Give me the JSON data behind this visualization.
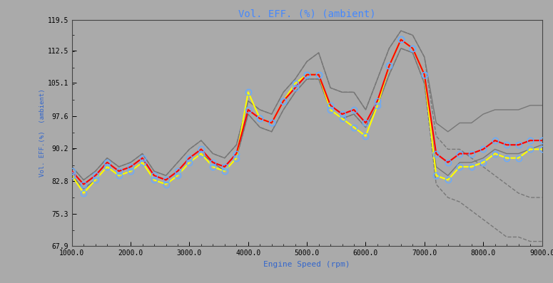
{
  "title": "Vol. EFF. (%) (ambient)",
  "xlabel": "Engine Speed (rpm)",
  "ylabel": "Vol. EFF.(%)  (ambient)",
  "bg_color": "#aaaaaa",
  "plot_bg_color": "#aaaaaa",
  "title_color": "#4488ff",
  "label_color": "#3366cc",
  "xlim": [
    1000,
    9000
  ],
  "ylim": [
    67.9,
    119.5
  ],
  "yticks": [
    67.9,
    75.3,
    82.8,
    90.2,
    97.6,
    105.1,
    112.5,
    119.5
  ],
  "xticks": [
    1000,
    2000,
    3000,
    4000,
    5000,
    6000,
    7000,
    8000,
    9000
  ],
  "rpm": [
    1000,
    1200,
    1400,
    1600,
    1800,
    2000,
    2200,
    2400,
    2600,
    2800,
    3000,
    3200,
    3400,
    3600,
    3800,
    4000,
    4200,
    4400,
    4600,
    4800,
    5000,
    5200,
    5400,
    5600,
    5800,
    6000,
    6200,
    6400,
    6600,
    6800,
    7000,
    7200,
    7400,
    7600,
    7800,
    8000,
    8200,
    8400,
    8600,
    8800,
    9000
  ],
  "red_solid": [
    85,
    82,
    84,
    87,
    85,
    86,
    88,
    84,
    83,
    85,
    88,
    90,
    87,
    86,
    89,
    99,
    97,
    96,
    101,
    104,
    107,
    107,
    100,
    98,
    99,
    96,
    101,
    109,
    115,
    113,
    107,
    89,
    87,
    89,
    89,
    90,
    92,
    91,
    91,
    92,
    92
  ],
  "yellow_solid": [
    84,
    80,
    83,
    86,
    84,
    85,
    87,
    83,
    82,
    84,
    87,
    89,
    86,
    85,
    88,
    103,
    97,
    96,
    101,
    105,
    107,
    107,
    99,
    97,
    95,
    93,
    100,
    109,
    115,
    113,
    107,
    84,
    83,
    86,
    86,
    87,
    89,
    88,
    88,
    90,
    90
  ],
  "gray_s_upper": [
    86,
    83,
    85,
    88,
    86,
    87,
    89,
    85,
    84,
    87,
    90,
    92,
    89,
    88,
    91,
    101,
    99,
    98,
    103,
    106,
    110,
    112,
    104,
    103,
    103,
    99,
    106,
    113,
    117,
    116,
    111,
    96,
    94,
    96,
    96,
    98,
    99,
    99,
    99,
    100,
    100
  ],
  "gray_s_lower": [
    84,
    81,
    83,
    86,
    84,
    85,
    87,
    83,
    82,
    84,
    87,
    89,
    87,
    85,
    88,
    98,
    95,
    94,
    99,
    103,
    106,
    106,
    99,
    97,
    98,
    95,
    100,
    107,
    113,
    112,
    105,
    86,
    84,
    87,
    87,
    88,
    90,
    89,
    89,
    90,
    91
  ],
  "gray_d_upper": [
    86,
    83,
    85,
    88,
    86,
    87,
    89,
    85,
    84,
    87,
    90,
    92,
    89,
    88,
    91,
    101,
    99,
    98,
    103,
    106,
    110,
    112,
    104,
    103,
    103,
    99,
    106,
    113,
    117,
    116,
    111,
    93,
    90,
    90,
    88,
    86,
    84,
    82,
    80,
    79,
    79
  ],
  "gray_d_lower": [
    84,
    81,
    83,
    86,
    84,
    85,
    87,
    83,
    82,
    84,
    87,
    89,
    87,
    85,
    88,
    98,
    95,
    94,
    99,
    103,
    106,
    106,
    99,
    97,
    98,
    95,
    100,
    107,
    113,
    112,
    105,
    82,
    79,
    78,
    76,
    74,
    72,
    70,
    70,
    69,
    69
  ],
  "marker_color": "#66aaff",
  "marker_size": 6,
  "lw_main": 1.5,
  "lw_gray": 1.0
}
